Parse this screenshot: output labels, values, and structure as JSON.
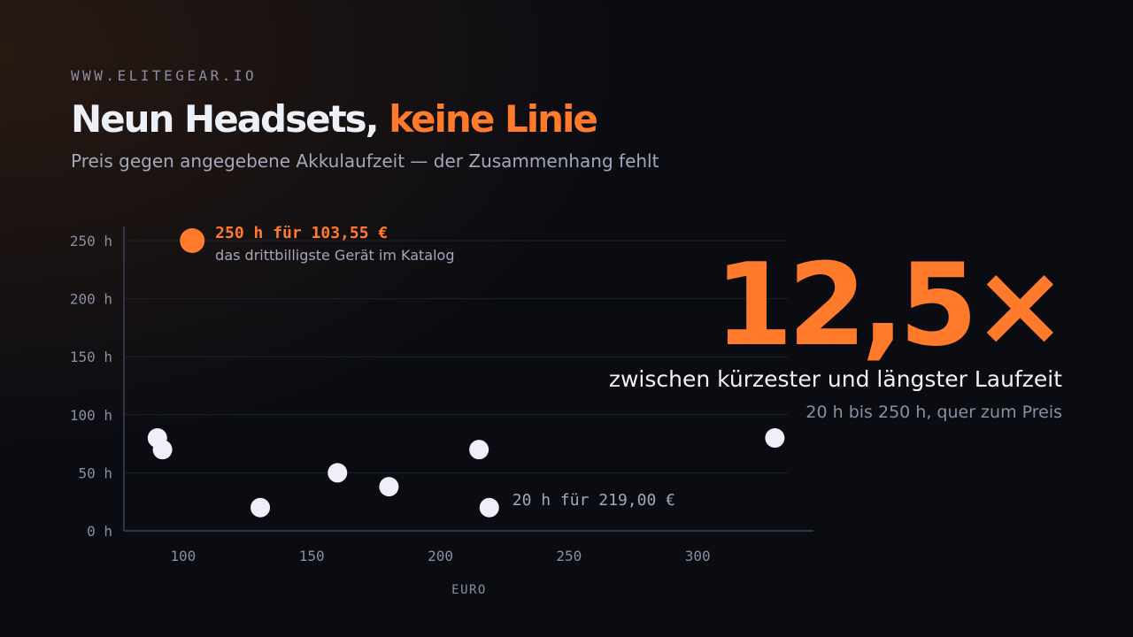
{
  "header": {
    "site": "WWW.ELITEGEAR.IO",
    "title_main": "Neun Headsets, ",
    "title_accent": "keine Linie",
    "subtitle": "Preis gegen angegebene Akkulaufzeit — der Zusammenhang fehlt"
  },
  "stat": {
    "value": "12,5×",
    "label": "zwischen kürzester und längster Laufzeit",
    "note": "20 h bis 250 h, quer zum Preis"
  },
  "colors": {
    "accent": "#ff7a2a",
    "point": "#eeeff8",
    "grid": "#1d2130",
    "axis": "#2f3447",
    "tick": "#8a8ea3"
  },
  "chart_data": {
    "type": "scatter",
    "xlabel": "EURO",
    "ylabel": "",
    "xlim": [
      77,
      345
    ],
    "ylim": [
      0,
      250
    ],
    "xticks": [
      {
        "value": 100,
        "label": "100"
      },
      {
        "value": 150,
        "label": "150"
      },
      {
        "value": 200,
        "label": "200"
      },
      {
        "value": 250,
        "label": "250"
      },
      {
        "value": 300,
        "label": "300"
      }
    ],
    "yticks": [
      {
        "value": 0,
        "label": "0 h"
      },
      {
        "value": 50,
        "label": "50 h"
      },
      {
        "value": 100,
        "label": "100 h"
      },
      {
        "value": 150,
        "label": "150 h"
      },
      {
        "value": 200,
        "label": "200 h"
      },
      {
        "value": 250,
        "label": "250 h"
      }
    ],
    "grid": true,
    "points": [
      {
        "x": 103.55,
        "y": 250,
        "highlight": true
      },
      {
        "x": 90,
        "y": 80
      },
      {
        "x": 92,
        "y": 70
      },
      {
        "x": 130,
        "y": 20
      },
      {
        "x": 160,
        "y": 50
      },
      {
        "x": 180,
        "y": 38
      },
      {
        "x": 215,
        "y": 70
      },
      {
        "x": 219,
        "y": 20
      },
      {
        "x": 330,
        "y": 80
      }
    ],
    "annotations": [
      {
        "x": 103.55,
        "y": 250,
        "text": "250 h für 103,55 €",
        "subtext": "das drittbilligste Gerät im Katalog",
        "highlight": true
      },
      {
        "x": 219,
        "y": 20,
        "text": "20 h für 219,00 €",
        "subtext": "",
        "highlight": false
      }
    ]
  }
}
